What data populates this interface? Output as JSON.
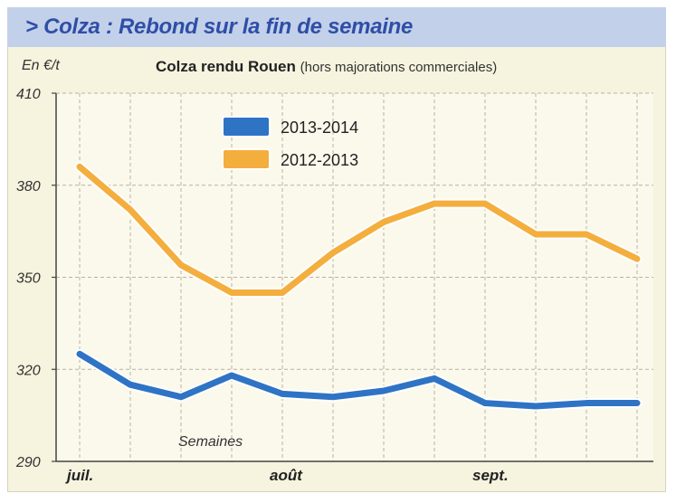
{
  "header": {
    "title": "> Colza : Rebond sur la fin de semaine"
  },
  "unit_label": "En €/t",
  "chart_data": {
    "type": "line",
    "title": "Colza rendu Rouen",
    "subtitle": "(hors majorations commerciales)",
    "ylabel": "En €/t",
    "xlabel": "Semaines",
    "ylim": [
      290,
      410
    ],
    "yticks": [
      290,
      320,
      350,
      380,
      410
    ],
    "x_points": 12,
    "x_tick_labels": [
      {
        "label": "juil.",
        "index": 0
      },
      {
        "label": "août",
        "index": 4
      },
      {
        "label": "sept.",
        "index": 8
      }
    ],
    "grid": true,
    "legend_position": "top-left",
    "series": [
      {
        "name": "2013-2014",
        "color": "#2f73c4",
        "values": [
          325,
          315,
          311,
          318,
          312,
          311,
          313,
          317,
          309,
          308,
          309,
          309
        ]
      },
      {
        "name": "2012-2013",
        "color": "#f4ae3d",
        "values": [
          386,
          372,
          354,
          345,
          345,
          358,
          368,
          374,
          374,
          364,
          364,
          356
        ]
      }
    ]
  }
}
